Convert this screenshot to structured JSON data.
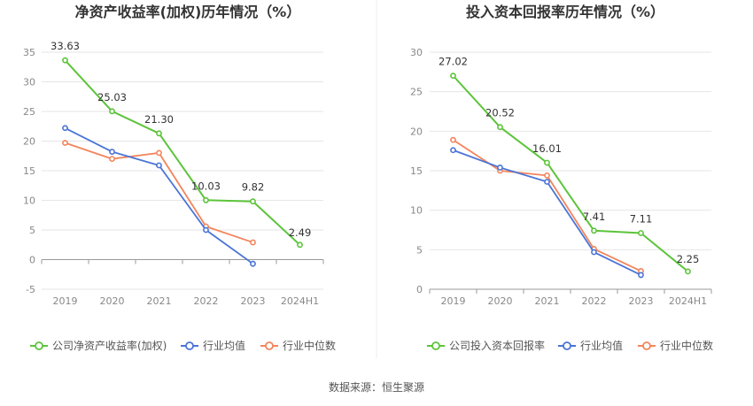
{
  "source_label": "数据来源：恒生聚源",
  "colors": {
    "company": "#5cc43a",
    "industry_avg": "#4a74d6",
    "industry_median": "#f3845b",
    "grid": "#e6e6e6",
    "axis": "#999999"
  },
  "chart_data": [
    {
      "type": "line",
      "title": "净资产收益率(加权)历年情况（%）",
      "categories": [
        "2019",
        "2020",
        "2021",
        "2022",
        "2023",
        "2024H1"
      ],
      "ylim": [
        -5,
        35
      ],
      "yticks": [
        -5,
        0,
        5,
        10,
        15,
        20,
        25,
        30,
        35
      ],
      "grid": true,
      "legend_position": "bottom",
      "series": [
        {
          "name": "公司净资产收益率(加权)",
          "key": "company",
          "values": [
            33.63,
            25.03,
            21.3,
            10.03,
            9.82,
            2.49
          ],
          "labels": [
            "33.63",
            "25.03",
            "21.30",
            "10.03",
            "9.82",
            "2.49"
          ]
        },
        {
          "name": "行业均值",
          "key": "industry_avg",
          "values": [
            22.2,
            18.2,
            15.9,
            5.0,
            -0.7,
            null
          ]
        },
        {
          "name": "行业中位数",
          "key": "industry_median",
          "values": [
            19.7,
            17.0,
            18.0,
            5.6,
            2.9,
            null
          ]
        }
      ]
    },
    {
      "type": "line",
      "title": "投入资本回报率历年情况（%）",
      "categories": [
        "2019",
        "2020",
        "2021",
        "2022",
        "2023",
        "2024H1"
      ],
      "ylim": [
        0,
        30
      ],
      "yticks": [
        0,
        5,
        10,
        15,
        20,
        25,
        30
      ],
      "grid": true,
      "legend_position": "bottom",
      "series": [
        {
          "name": "公司投入资本回报率",
          "key": "company",
          "values": [
            27.02,
            20.52,
            16.01,
            7.41,
            7.11,
            2.25
          ],
          "labels": [
            "27.02",
            "20.52",
            "16.01",
            "7.41",
            "7.11",
            "2.25"
          ]
        },
        {
          "name": "行业均值",
          "key": "industry_avg",
          "values": [
            17.6,
            15.4,
            13.6,
            4.7,
            1.8,
            null
          ]
        },
        {
          "name": "行业中位数",
          "key": "industry_median",
          "values": [
            18.9,
            15.0,
            14.4,
            5.1,
            2.3,
            null
          ]
        }
      ]
    }
  ]
}
